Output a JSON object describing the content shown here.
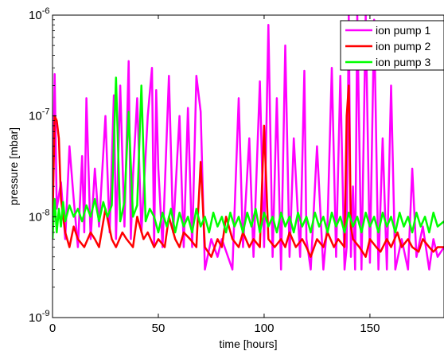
{
  "chart_data": {
    "type": "line",
    "title": "",
    "xlabel": "time [hours]",
    "ylabel": "pressure [mbar]",
    "xlim": [
      0,
      185
    ],
    "ylim": [
      1e-09,
      1e-06
    ],
    "yscale": "log",
    "grid": false,
    "legend_position": "top-right",
    "x_ticks": [
      {
        "value": 0,
        "label": "0"
      },
      {
        "value": 50,
        "label": "50"
      },
      {
        "value": 100,
        "label": "100"
      },
      {
        "value": 150,
        "label": "150"
      }
    ],
    "y_ticks": [
      {
        "value": 1e-09,
        "base": "10",
        "exp": "-9"
      },
      {
        "value": 1e-08,
        "base": "10",
        "exp": "-8"
      },
      {
        "value": 1e-07,
        "base": "10",
        "exp": "-7"
      },
      {
        "value": 1e-06,
        "base": "10",
        "exp": "-6"
      }
    ],
    "series": [
      {
        "name": "ion pump 1",
        "color": "#ff00ff",
        "x": [
          0,
          1,
          2,
          4,
          6,
          8,
          10,
          12,
          14,
          15,
          16,
          18,
          20,
          22,
          25,
          27,
          29,
          30,
          32,
          34,
          36,
          37,
          38,
          40,
          42,
          45,
          47,
          48,
          49,
          50,
          52,
          55,
          57,
          60,
          62,
          64,
          66,
          68,
          70,
          72,
          75,
          78,
          80,
          85,
          88,
          90,
          93,
          95,
          98,
          100,
          102,
          104,
          106,
          108,
          110,
          112,
          114,
          115,
          117,
          119,
          120,
          122,
          125,
          128,
          130,
          132,
          134,
          136,
          138,
          139,
          140,
          141,
          142,
          143,
          144,
          146,
          148,
          150,
          152,
          154,
          156,
          158,
          160,
          162,
          165,
          168,
          170,
          172,
          175,
          178,
          180,
          182,
          185
        ],
        "y": [
          1e-08,
          2.6e-07,
          1.2e-08,
          2.2e-08,
          6e-09,
          5e-08,
          1.5e-08,
          5e-09,
          4e-08,
          7e-09,
          1.5e-07,
          6e-09,
          3e-08,
          8e-09,
          1e-07,
          7e-09,
          1.6e-07,
          6e-09,
          2e-07,
          8e-09,
          3.5e-07,
          6e-09,
          2.5e-08,
          1.5e-07,
          7e-09,
          1e-07,
          3e-07,
          5e-09,
          1.8e-07,
          3e-08,
          5e-09,
          2.5e-07,
          7e-09,
          1e-07,
          5e-09,
          1.2e-07,
          5e-09,
          2.5e-07,
          1.1e-07,
          3e-09,
          6e-09,
          4e-09,
          6e-09,
          3e-09,
          1.5e-07,
          5e-09,
          6e-08,
          4e-09,
          2.2e-07,
          5e-09,
          8e-07,
          4e-09,
          1.5e-07,
          3e-09,
          5e-07,
          4e-09,
          6e-08,
          2.5e-08,
          4e-09,
          2.8e-07,
          6e-09,
          3e-09,
          5e-08,
          3e-09,
          9e-09,
          3e-07,
          4e-09,
          2.5e-07,
          3e-09,
          5e-09,
          1e-06,
          4e-09,
          2e-08,
          3e-09,
          1e-06,
          3e-09,
          1e-06,
          3.5e-09,
          9e-07,
          3e-09,
          6e-08,
          3e-09,
          2e-07,
          3e-09,
          6e-09,
          3e-09,
          3e-08,
          4e-09,
          8e-09,
          3e-09,
          6e-09,
          4e-09,
          5e-09
        ]
      },
      {
        "name": "ion pump 2",
        "color": "#ff0000",
        "x": [
          0,
          1,
          2,
          3,
          4,
          6,
          8,
          10,
          12,
          15,
          18,
          20,
          22,
          25,
          28,
          30,
          33,
          35,
          38,
          40,
          43,
          45,
          48,
          50,
          53,
          55,
          58,
          60,
          62,
          65,
          68,
          70,
          72,
          75,
          78,
          80,
          82,
          85,
          88,
          90,
          93,
          95,
          98,
          100,
          102,
          105,
          108,
          110,
          112,
          115,
          118,
          120,
          122,
          125,
          128,
          130,
          133,
          135,
          138,
          139,
          140,
          141,
          142,
          145,
          148,
          150,
          153,
          155,
          158,
          160,
          163,
          165,
          168,
          170,
          173,
          175,
          178,
          180,
          182,
          185
        ],
        "y": [
          8e-09,
          1e-07,
          9e-08,
          6e-08,
          1.5e-08,
          7e-09,
          5e-09,
          8e-09,
          6e-09,
          5e-09,
          7e-09,
          6e-09,
          5e-09,
          1.2e-08,
          6e-09,
          5e-09,
          7e-09,
          6e-09,
          5e-09,
          1e-08,
          6e-09,
          7e-09,
          5e-09,
          6e-09,
          5e-09,
          1e-08,
          6e-09,
          5e-09,
          7e-09,
          6e-09,
          5e-09,
          3.5e-08,
          5e-09,
          4e-09,
          6e-09,
          5e-09,
          1e-08,
          6e-09,
          5e-09,
          7e-09,
          5e-09,
          6e-09,
          5e-09,
          8e-08,
          6e-09,
          5e-09,
          6e-09,
          5e-09,
          7e-09,
          5e-09,
          6e-09,
          5e-09,
          4e-09,
          6e-09,
          5e-09,
          7e-09,
          5e-09,
          6e-09,
          5e-09,
          1e-07,
          2e-07,
          8e-09,
          6e-09,
          5e-09,
          4e-09,
          6e-09,
          5e-09,
          4.5e-09,
          6e-09,
          5e-09,
          7e-09,
          5e-09,
          6e-09,
          5e-09,
          4.5e-09,
          6e-09,
          5e-09,
          4.5e-09,
          5e-09,
          5e-09
        ]
      },
      {
        "name": "ion pump 3",
        "color": "#00ff00",
        "x": [
          0,
          1,
          2,
          3,
          4,
          5,
          6,
          8,
          10,
          12,
          14,
          16,
          18,
          20,
          22,
          24,
          26,
          28,
          30,
          32,
          34,
          36,
          38,
          40,
          42,
          44,
          46,
          48,
          50,
          52,
          54,
          56,
          58,
          60,
          62,
          64,
          66,
          68,
          70,
          72,
          74,
          76,
          78,
          80,
          82,
          84,
          86,
          88,
          90,
          92,
          94,
          96,
          98,
          100,
          102,
          104,
          106,
          108,
          110,
          112,
          114,
          116,
          118,
          120,
          122,
          124,
          126,
          128,
          130,
          132,
          134,
          136,
          138,
          140,
          142,
          144,
          146,
          148,
          150,
          152,
          154,
          156,
          158,
          160,
          162,
          164,
          166,
          168,
          170,
          172,
          174,
          176,
          178,
          180,
          182,
          185
        ],
        "y": [
          6e-09,
          1.5e-08,
          7e-09,
          1.2e-08,
          8e-09,
          1.4e-08,
          9e-09,
          1.3e-08,
          1e-08,
          1.2e-08,
          9e-09,
          1.3e-08,
          1e-08,
          1.5e-08,
          9e-09,
          1.4e-08,
          1e-08,
          1.3e-08,
          2.4e-07,
          9e-09,
          1.4e-08,
          1.1e-07,
          1e-08,
          1.3e-08,
          2e-07,
          9e-09,
          1.2e-08,
          1e-08,
          7e-09,
          1.1e-08,
          8e-09,
          1.2e-08,
          7e-09,
          1.1e-08,
          8e-09,
          1e-08,
          7e-09,
          1.2e-08,
          8e-09,
          1e-08,
          7e-09,
          1.1e-08,
          8e-09,
          1e-08,
          7e-09,
          1.1e-08,
          8e-09,
          1e-08,
          7e-09,
          1.1e-08,
          8e-09,
          1.2e-08,
          7e-09,
          1.1e-08,
          8e-09,
          1e-08,
          7e-09,
          1.1e-08,
          8e-09,
          1e-08,
          7e-09,
          1.1e-08,
          8e-09,
          1e-08,
          7e-09,
          1.1e-08,
          8e-09,
          1e-08,
          7e-09,
          1.1e-08,
          8e-09,
          1e-08,
          7e-09,
          1.1e-08,
          8e-09,
          1e-08,
          7e-09,
          1.1e-08,
          8e-09,
          1e-08,
          7e-09,
          1.1e-08,
          8e-09,
          1e-08,
          7e-09,
          1.1e-08,
          8e-09,
          1e-08,
          7e-09,
          1.1e-08,
          8e-09,
          1e-08,
          7e-09,
          1.1e-08,
          8e-09,
          9e-09
        ]
      }
    ]
  }
}
